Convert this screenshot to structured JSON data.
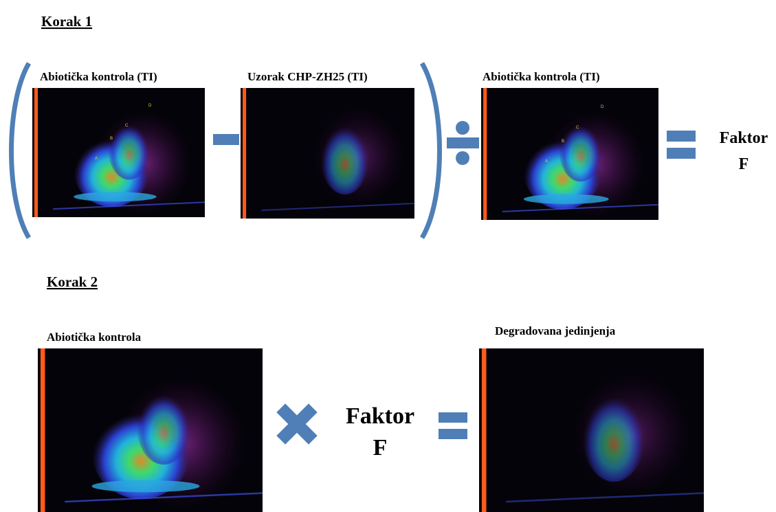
{
  "step1": {
    "title": "Korak 1",
    "panels": [
      {
        "label": "Abiotička kontrola (TI)",
        "peaks": [
          "A",
          "B",
          "C",
          "D"
        ]
      },
      {
        "label": "Uzorak CHP-ZH25 (TI)"
      },
      {
        "label": "Abiotička kontrola (TI)",
        "peaks": [
          "A",
          "B",
          "C",
          "D"
        ]
      }
    ],
    "result": [
      "Faktor",
      "F"
    ]
  },
  "step2": {
    "title": "Korak 2",
    "panels": [
      {
        "label": "Abiotička kontrola"
      },
      {
        "label": "Degradovana jedinjenja"
      }
    ],
    "factor": [
      "Faktor",
      "F"
    ]
  }
}
